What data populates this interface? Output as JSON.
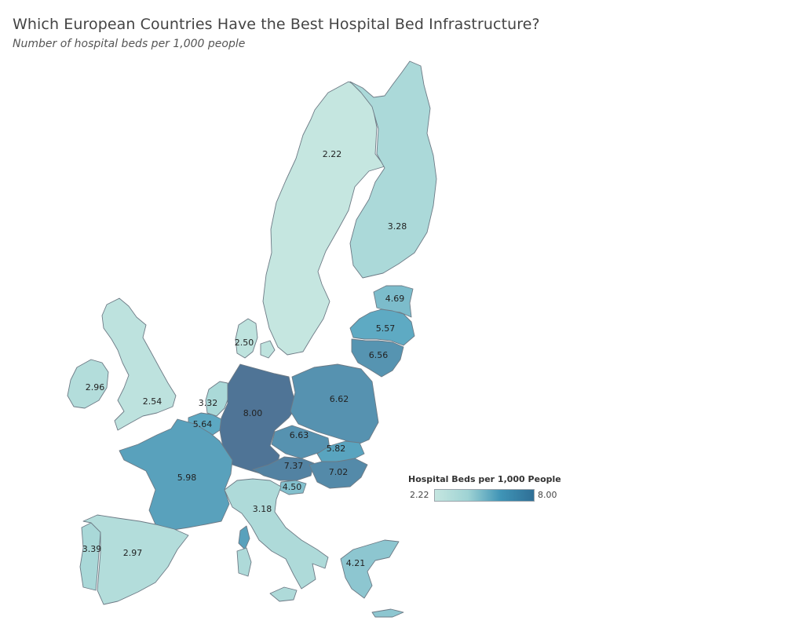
{
  "header": {
    "title": "Which European Countries Have the Best Hospital Bed Infrastructure?",
    "subtitle": "Number of hospital beds per 1,000 people"
  },
  "legend": {
    "title": "Hospital Beds per 1,000 People",
    "min_label": "2.22",
    "max_label": "8.00",
    "color_min": "#c5e6e0",
    "color_max": "#2f6f96"
  },
  "countries": [
    {
      "id": "sweden",
      "label": "2.22",
      "value": 2.22
    },
    {
      "id": "finland",
      "label": "3.28",
      "value": 3.28
    },
    {
      "id": "estonia",
      "label": "4.69",
      "value": 4.69
    },
    {
      "id": "latvia",
      "label": "5.57",
      "value": 5.57
    },
    {
      "id": "lithuania",
      "label": "6.56",
      "value": 6.56
    },
    {
      "id": "denmark",
      "label": "2.50",
      "value": 2.5
    },
    {
      "id": "ireland",
      "label": "2.96",
      "value": 2.96
    },
    {
      "id": "uk",
      "label": "2.54",
      "value": 2.54
    },
    {
      "id": "netherlands",
      "label": "3.32",
      "value": 3.32
    },
    {
      "id": "belgium",
      "label": "5.64",
      "value": 5.64
    },
    {
      "id": "germany",
      "label": "8.00",
      "value": 8.0
    },
    {
      "id": "poland",
      "label": "6.62",
      "value": 6.62
    },
    {
      "id": "czechia",
      "label": "6.63",
      "value": 6.63
    },
    {
      "id": "slovakia",
      "label": "5.82",
      "value": 5.82
    },
    {
      "id": "austria",
      "label": "7.37",
      "value": 7.37
    },
    {
      "id": "hungary",
      "label": "7.02",
      "value": 7.02
    },
    {
      "id": "slovenia",
      "label": "4.50",
      "value": 4.5
    },
    {
      "id": "france",
      "label": "5.98",
      "value": 5.98
    },
    {
      "id": "italy",
      "label": "3.18",
      "value": 3.18
    },
    {
      "id": "portugal",
      "label": "3.39",
      "value": 3.39
    },
    {
      "id": "spain",
      "label": "2.97",
      "value": 2.97
    },
    {
      "id": "greece",
      "label": "4.21",
      "value": 4.21
    }
  ]
}
